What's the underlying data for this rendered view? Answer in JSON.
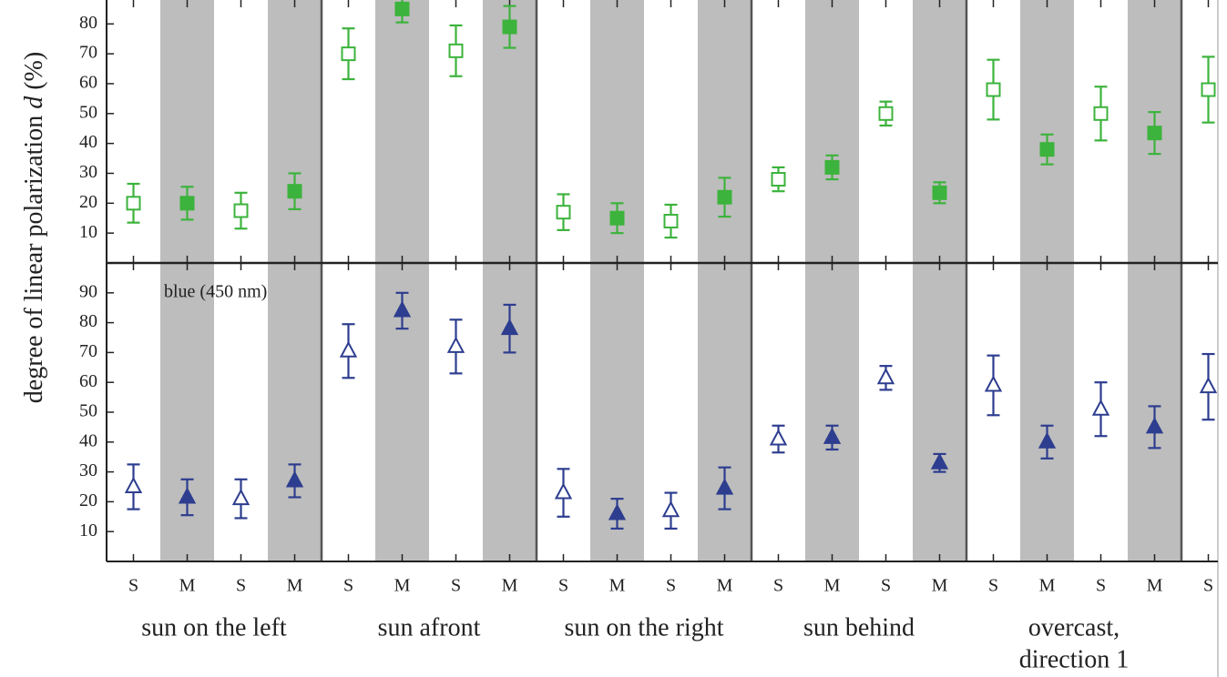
{
  "chart_data": [
    {
      "type": "errorbar",
      "categories": [
        "S",
        "M",
        "S",
        "M",
        "S",
        "M",
        "S",
        "M",
        "S",
        "M",
        "S",
        "M",
        "S",
        "M",
        "S",
        "M",
        "S",
        "M",
        "S",
        "M",
        "S"
      ],
      "ylim": [
        0,
        88
      ],
      "yticks": [
        10,
        20,
        30,
        40,
        50,
        60,
        70,
        80
      ],
      "marker": "square",
      "series": [
        {
          "color": "#3cb33c",
          "values": [
            20,
            20,
            17.5,
            24,
            70,
            85,
            71,
            79,
            17,
            15,
            14,
            22,
            28,
            32,
            50,
            23.5,
            58,
            38,
            50,
            43.5,
            58
          ],
          "errors": [
            6.5,
            5.5,
            6,
            6,
            8.5,
            4.5,
            8.5,
            7,
            6,
            5,
            5.5,
            6.5,
            4,
            4,
            4,
            3.5,
            10,
            5,
            9,
            7,
            11
          ]
        }
      ]
    },
    {
      "type": "errorbar",
      "categories": [
        "S",
        "M",
        "S",
        "M",
        "S",
        "M",
        "S",
        "M",
        "S",
        "M",
        "S",
        "M",
        "S",
        "M",
        "S",
        "M",
        "S",
        "M",
        "S",
        "M",
        "S"
      ],
      "ylim": [
        0,
        100
      ],
      "yticks": [
        10,
        20,
        30,
        40,
        50,
        60,
        70,
        80,
        90
      ],
      "marker": "triangle",
      "series": [
        {
          "name": "blue (450 nm)",
          "color": "#2d3d8f",
          "values": [
            25,
            21.5,
            21,
            27,
            70.5,
            84,
            72,
            78,
            23,
            16,
            17,
            24.5,
            41,
            41.5,
            61.5,
            33,
            59,
            40,
            51,
            45,
            58.5
          ],
          "errors": [
            7.5,
            6,
            6.5,
            5.5,
            9,
            6,
            9,
            8,
            8,
            5,
            6,
            7,
            4.5,
            4,
            4,
            3,
            10,
            5.5,
            9,
            7,
            11
          ]
        }
      ],
      "ylabel": [
        "degree of linear polarization",
        "d",
        "(%)"
      ],
      "x_groups": [
        [
          "sun on the left"
        ],
        [
          "sun afront"
        ],
        [
          "sun on the right"
        ],
        [
          "sun behind"
        ],
        [
          "overcast,",
          "direction 1"
        ]
      ]
    }
  ]
}
